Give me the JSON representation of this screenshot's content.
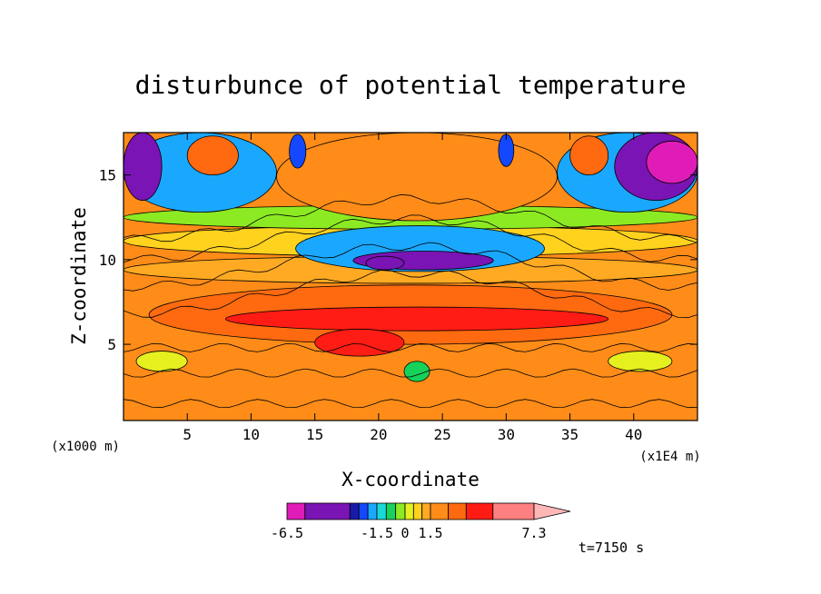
{
  "chart_data": {
    "type": "heatmap",
    "title": "disturbunce of potential temperature",
    "xlabel": "X-coordinate",
    "ylabel": "Z-coordinate",
    "x_unit": "(x1E4 m)",
    "y_unit": "(x1000 m)",
    "xlim": [
      0,
      45
    ],
    "ylim": [
      0.5,
      17.5
    ],
    "x_ticks": [
      5,
      10,
      15,
      20,
      25,
      30,
      35,
      40
    ],
    "y_ticks": [
      5,
      10,
      15
    ],
    "colorbar": {
      "levels": [
        -6.5,
        -5.5,
        -3.0,
        -2.5,
        -2.0,
        -1.5,
        -1.0,
        -0.5,
        0.0,
        0.5,
        1.0,
        1.5,
        2.5,
        3.5,
        5.0,
        7.3
      ],
      "tick_labels": [
        "-6.5",
        "-1.5",
        "0",
        "1.5",
        "7.3"
      ],
      "tick_values": [
        -6.5,
        -1.5,
        0.0,
        1.5,
        7.3
      ],
      "colors": [
        "#e01cb8",
        "#7a14b4",
        "#1a1aa8",
        "#1448ff",
        "#1aa8ff",
        "#18d8d8",
        "#16d25a",
        "#8cea22",
        "#e6f01e",
        "#ffd21e",
        "#ffaa22",
        "#ff8c18",
        "#ff6a10",
        "#ff1c14",
        "#ff8080"
      ]
    },
    "annotation": "t=7150 s",
    "field_regions": [
      {
        "x": [
          0,
          45
        ],
        "y": [
          0.5,
          17.5
        ],
        "value": 2.2
      },
      {
        "x": [
          0,
          45
        ],
        "y": [
          0.5,
          4.0
        ],
        "value": 1.8
      },
      {
        "x": [
          2,
          43
        ],
        "y": [
          5.0,
          8.5
        ],
        "value": 3.0
      },
      {
        "x": [
          8,
          38
        ],
        "y": [
          5.8,
          7.2
        ],
        "value": 3.8
      },
      {
        "x": [
          15,
          22
        ],
        "y": [
          4.3,
          5.9
        ],
        "value": 4.6
      },
      {
        "x": [
          0,
          45
        ],
        "y": [
          8.6,
          10.2
        ],
        "value": 1.2
      },
      {
        "x": [
          0,
          45
        ],
        "y": [
          10.2,
          12.0
        ],
        "value": 0.7
      },
      {
        "x": [
          0,
          45
        ],
        "y": [
          11.8,
          13.2
        ],
        "value": -0.2
      },
      {
        "x": [
          0,
          12
        ],
        "y": [
          12.8,
          17.5
        ],
        "value": -1.6
      },
      {
        "x": [
          34,
          45
        ],
        "y": [
          12.8,
          17.5
        ],
        "value": -1.6
      },
      {
        "x": [
          0,
          3
        ],
        "y": [
          13.5,
          17.5
        ],
        "value": -5.0
      },
      {
        "x": [
          38.5,
          45
        ],
        "y": [
          13.5,
          17.5
        ],
        "value": -4.0
      },
      {
        "x": [
          41,
          45
        ],
        "y": [
          14.5,
          17.0
        ],
        "value": -6.0
      },
      {
        "x": [
          12,
          34
        ],
        "y": [
          12.3,
          17.5
        ],
        "value": 1.8
      },
      {
        "x": [
          13.5,
          33
        ],
        "y": [
          9.3,
          12.0
        ],
        "value": -1.6
      },
      {
        "x": [
          18,
          29
        ],
        "y": [
          9.4,
          10.5
        ],
        "value": -3.5
      },
      {
        "x": [
          19,
          22
        ],
        "y": [
          9.4,
          10.2
        ],
        "value": -5.5
      },
      {
        "x": [
          1,
          5
        ],
        "y": [
          3.4,
          4.6
        ],
        "value": 0.3
      },
      {
        "x": [
          38,
          43
        ],
        "y": [
          3.4,
          4.6
        ],
        "value": 0.3
      },
      {
        "x": [
          5,
          9
        ],
        "y": [
          15.0,
          17.3
        ],
        "value": 3.0
      },
      {
        "x": [
          35,
          38
        ],
        "y": [
          15.0,
          17.3
        ],
        "value": 3.0
      },
      {
        "x": [
          13,
          14.3
        ],
        "y": [
          15.4,
          17.4
        ],
        "value": -2.5
      },
      {
        "x": [
          29.4,
          30.6
        ],
        "y": [
          15.5,
          17.4
        ],
        "value": -2.5
      },
      {
        "x": [
          22,
          24
        ],
        "y": [
          2.8,
          4.0
        ],
        "value": -0.8
      }
    ]
  }
}
